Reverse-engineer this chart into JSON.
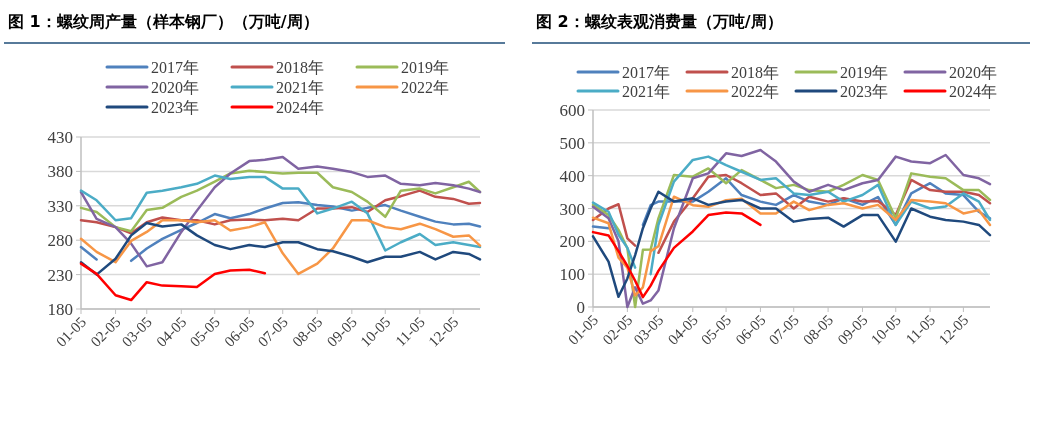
{
  "chart_data": [
    {
      "type": "line",
      "title": "图 1：螺纹周产量（样本钢厂）（万吨/周）",
      "x": [
        "--01-05",
        "--01-19",
        "--02-05",
        "--02-19",
        "--03-05",
        "--03-19",
        "--04-05",
        "--04-19",
        "--05-05",
        "--05-19",
        "--06-05",
        "--06-19",
        "--07-05",
        "--07-19",
        "--08-05",
        "--08-19",
        "--09-05",
        "--09-19",
        "--10-05",
        "--10-19",
        "--11-05",
        "--11-19",
        "--12-05",
        "--12-19",
        "--12-29"
      ],
      "xlim": [
        "--01-05",
        "--12-29"
      ],
      "xticks": [
        {
          "value": "--01-05",
          "label": "01-05"
        },
        {
          "value": "--02-05",
          "label": "02-05"
        },
        {
          "value": "--03-05",
          "label": "03-05"
        },
        {
          "value": "--04-05",
          "label": "04-05"
        },
        {
          "value": "--05-05",
          "label": "05-05"
        },
        {
          "value": "--06-05",
          "label": "06-05"
        },
        {
          "value": "--07-05",
          "label": "07-05"
        },
        {
          "value": "--08-05",
          "label": "08-05"
        },
        {
          "value": "--09-05",
          "label": "09-05"
        },
        {
          "value": "--10-05",
          "label": "10-05"
        },
        {
          "value": "--11-05",
          "label": "11-05"
        },
        {
          "value": "--12-05",
          "label": "12-05"
        }
      ],
      "ylim": [
        180,
        430
      ],
      "yticks": [
        180,
        230,
        280,
        330,
        380,
        430
      ],
      "grid": "y",
      "legend": "top",
      "series": [
        {
          "name": "2017年",
          "color": "#4f81bd",
          "values": [
            270,
            252,
            null,
            250,
            268,
            282,
            295,
            305,
            318,
            312,
            318,
            326,
            334,
            335,
            331,
            329,
            323,
            327,
            331,
            323,
            314,
            307,
            303,
            304,
            300
          ]
        },
        {
          "name": "2018年",
          "color": "#c0504d",
          "values": [
            309,
            306,
            299,
            290,
            306,
            313,
            309,
            309,
            303,
            309,
            310,
            309,
            311,
            309,
            326,
            326,
            328,
            321,
            338,
            344,
            352,
            343,
            340,
            333,
            334
          ]
        },
        {
          "name": "2019年",
          "color": "#9bbb59",
          "values": [
            327,
            321,
            299,
            293,
            324,
            327,
            343,
            352,
            365,
            377,
            381,
            379,
            377,
            378,
            378,
            357,
            350,
            336,
            314,
            352,
            355,
            348,
            357,
            365,
            350
          ]
        },
        {
          "name": "2020年",
          "color": "#8064a2",
          "values": [
            350,
            311,
            299,
            275,
            242,
            248,
            292,
            323,
            357,
            377,
            395,
            397,
            401,
            384,
            387,
            384,
            379,
            372,
            374,
            362,
            360,
            363,
            360,
            355,
            350
          ]
        },
        {
          "name": "2021年",
          "color": "#4bacc6",
          "values": [
            352,
            338,
            309,
            312,
            349,
            352,
            357,
            362,
            374,
            369,
            372,
            372,
            355,
            355,
            319,
            326,
            336,
            319,
            265,
            277,
            289,
            273,
            277,
            273,
            270
          ]
        },
        {
          "name": "2022年",
          "color": "#f79646",
          "values": [
            282,
            263,
            248,
            279,
            292,
            309,
            309,
            306,
            309,
            294,
            299,
            306,
            261,
            231,
            246,
            268,
            309,
            309,
            299,
            296,
            304,
            296,
            285,
            287,
            272
          ]
        },
        {
          "name": "2023年",
          "color": "#1f497d",
          "values": [
            248,
            230,
            253,
            287,
            305,
            300,
            303,
            287,
            273,
            267,
            273,
            270,
            277,
            277,
            267,
            264,
            256,
            248,
            256,
            256,
            263,
            252,
            263,
            260,
            252
          ]
        },
        {
          "name": "2024年",
          "color": "#ff0000",
          "values": [
            246,
            231,
            200,
            193,
            219,
            214,
            213,
            212,
            231,
            236,
            237,
            232,
            null,
            null,
            null,
            null,
            null,
            null,
            null,
            null,
            null,
            null,
            null,
            null,
            null
          ]
        }
      ]
    },
    {
      "type": "line",
      "title": "图 2：螺纹表观消费量（万吨/周）",
      "x": [
        "--01-05",
        "--01-19",
        "--01-28",
        "--02-05",
        "--02-12",
        "--02-19",
        "--02-26",
        "--03-05",
        "--03-19",
        "--04-05",
        "--04-19",
        "--05-05",
        "--05-19",
        "--06-05",
        "--06-19",
        "--07-05",
        "--07-19",
        "--08-05",
        "--08-19",
        "--09-05",
        "--09-19",
        "--10-05",
        "--10-19",
        "--11-05",
        "--11-19",
        "--12-05",
        "--12-19",
        "--12-29"
      ],
      "xlim": [
        "--01-05",
        "--12-29"
      ],
      "xticks": [
        {
          "value": "--01-05",
          "label": "01-05"
        },
        {
          "value": "--02-05",
          "label": "02-05"
        },
        {
          "value": "--03-05",
          "label": "03-05"
        },
        {
          "value": "--04-05",
          "label": "04-05"
        },
        {
          "value": "--05-05",
          "label": "05-05"
        },
        {
          "value": "--06-05",
          "label": "06-05"
        },
        {
          "value": "--07-05",
          "label": "07-05"
        },
        {
          "value": "--08-05",
          "label": "08-05"
        },
        {
          "value": "--09-05",
          "label": "09-05"
        },
        {
          "value": "--10-05",
          "label": "10-05"
        },
        {
          "value": "--11-05",
          "label": "11-05"
        },
        {
          "value": "--12-05",
          "label": "12-05"
        }
      ],
      "ylim": [
        0,
        600
      ],
      "yticks": [
        0,
        100,
        200,
        300,
        400,
        500,
        600
      ],
      "grid": "y",
      "legend": "top",
      "series": [
        {
          "name": "2017年",
          "color": "#4f81bd",
          "values": [
            245,
            240,
            null,
            null,
            null,
            250,
            310,
            321,
            321,
            321,
            351,
            392,
            341,
            321,
            311,
            341,
            321,
            311,
            331,
            311,
            335,
            250,
            346,
            377,
            346,
            341,
            290,
            270
          ]
        },
        {
          "name": "2018年",
          "color": "#c0504d",
          "values": [
            265,
            300,
            313,
            209,
            187,
            null,
            null,
            165,
            260,
            331,
            397,
            402,
            377,
            341,
            346,
            300,
            336,
            321,
            331,
            321,
            323,
            280,
            387,
            356,
            351,
            351,
            341,
            316
          ]
        },
        {
          "name": "2019年",
          "color": "#9bbb59",
          "values": [
            311,
            280,
            235,
            179,
            0,
            174,
            175,
            270,
            402,
            397,
            422,
            377,
            417,
            387,
            362,
            372,
            356,
            351,
            372,
            402,
            387,
            270,
            407,
            397,
            392,
            356,
            356,
            326
          ]
        },
        {
          "name": "2020年",
          "color": "#8064a2",
          "values": [
            305,
            270,
            200,
            0,
            60,
            10,
            20,
            50,
            240,
            392,
            407,
            468,
            460,
            478,
            443,
            382,
            351,
            372,
            356,
            377,
            387,
            458,
            443,
            438,
            463,
            402,
            392,
            374
          ]
        },
        {
          "name": "2021年",
          "color": "#4bacc6",
          "values": [
            318,
            290,
            220,
            180,
            120,
            null,
            100,
            250,
            382,
            448,
            458,
            432,
            412,
            387,
            392,
            346,
            341,
            351,
            321,
            341,
            372,
            250,
            321,
            300,
            306,
            346,
            321,
            265
          ]
        },
        {
          "name": "2022年",
          "color": "#f79646",
          "values": [
            272,
            255,
            150,
            120,
            35,
            60,
            170,
            185,
            336,
            310,
            305,
            325,
            330,
            285,
            285,
            321,
            295,
            311,
            316,
            300,
            311,
            265,
            326,
            321,
            316,
            285,
            295,
            250
          ]
        },
        {
          "name": "2023年",
          "color": "#1f497d",
          "values": [
            215,
            138,
            31,
            87,
            158,
            240,
            300,
            351,
            321,
            331,
            311,
            321,
            326,
            300,
            300,
            260,
            268,
            272,
            245,
            280,
            280,
            199,
            300,
            275,
            265,
            260,
            250,
            219
          ]
        },
        {
          "name": "2024年",
          "color": "#ff0000",
          "values": [
            228,
            218,
            170,
            125,
            80,
            30,
            65,
            110,
            180,
            230,
            280,
            288,
            285,
            250,
            null,
            null,
            null,
            null,
            null,
            null,
            null,
            null,
            null,
            null,
            null,
            null,
            null,
            null
          ]
        }
      ]
    }
  ]
}
